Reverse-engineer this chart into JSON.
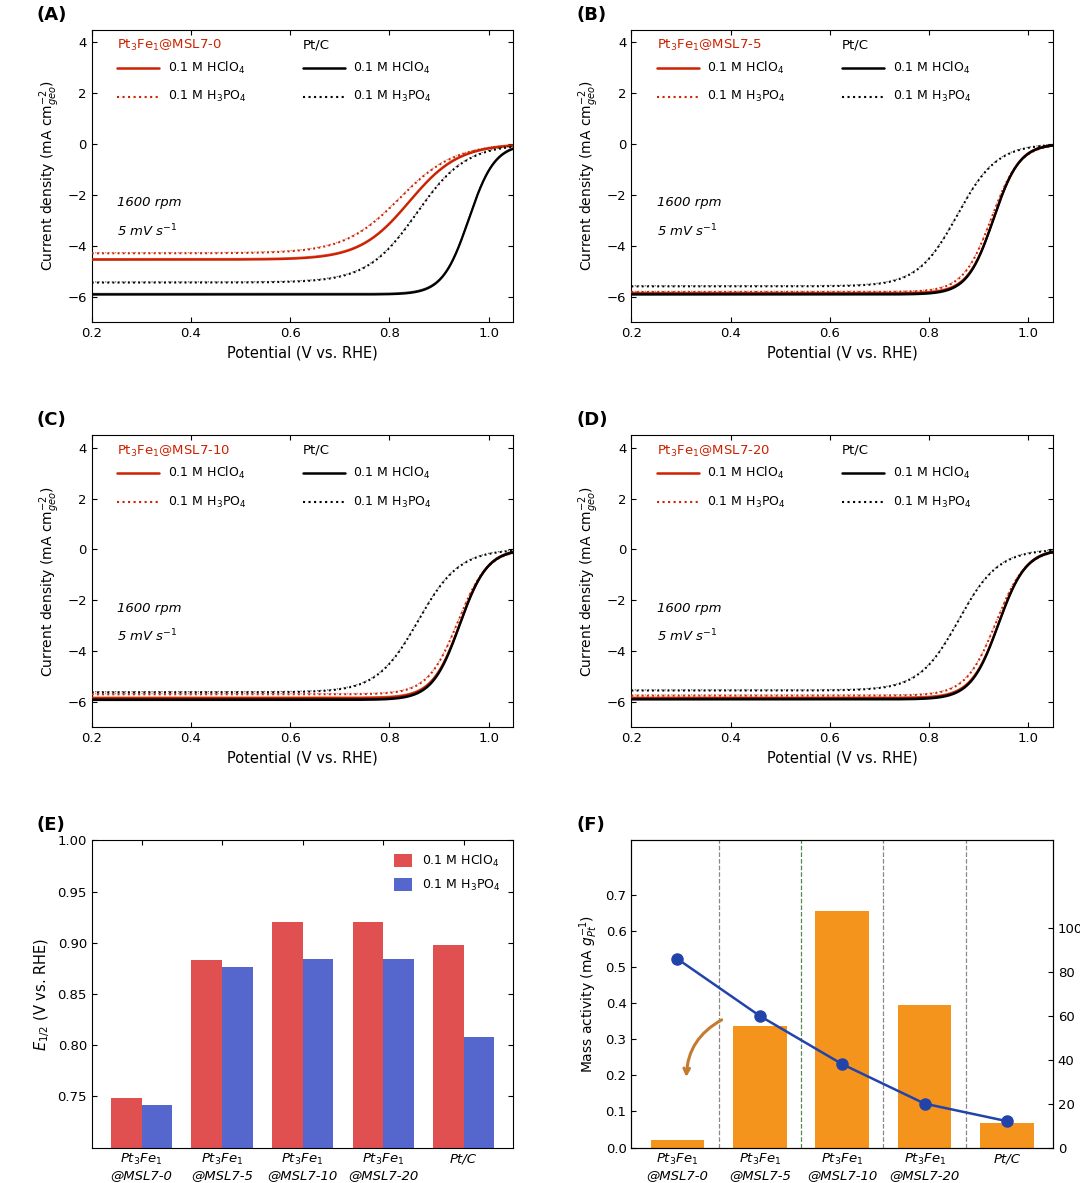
{
  "panels": [
    "A",
    "B",
    "C",
    "D"
  ],
  "panel_labels": [
    "Pt$_3$Fe$_1$@MSL7-0",
    "Pt$_3$Fe$_1$@MSL7-5",
    "Pt$_3$Fe$_1$@MSL7-10",
    "Pt$_3$Fe$_1$@MSL7-20"
  ],
  "xlabel": "Potential (V vs. RHE)",
  "ylabel": "Current density (mA cm$^{-2}_{geo}$)",
  "xlim": [
    0.2,
    1.05
  ],
  "ylim": [
    -7.0,
    4.5
  ],
  "yticks": [
    -6,
    -4,
    -2,
    0,
    2,
    4
  ],
  "xticks": [
    0.2,
    0.4,
    0.6,
    0.8,
    1.0
  ],
  "annotation": "1600 rpm\n5 mV s$^{-1}$",
  "red_color": "#CC2200",
  "black_color": "#000000",
  "E_half_HClO4": [
    0.748,
    0.883,
    0.92,
    0.92,
    0.898
  ],
  "E_half_H3PO4": [
    0.742,
    0.876,
    0.884,
    0.884,
    0.808
  ],
  "mass_activity_values": [
    0.022,
    0.335,
    0.655,
    0.395,
    0.068
  ],
  "sieving_effect_pct": [
    86,
    60,
    38,
    20,
    12
  ],
  "bar_orange": "#F5941D",
  "sieving_blue": "#2244AA",
  "arrow_color": "#C47B30",
  "red_bar_color": "#E05050",
  "blue_bar_color": "#5566CC"
}
